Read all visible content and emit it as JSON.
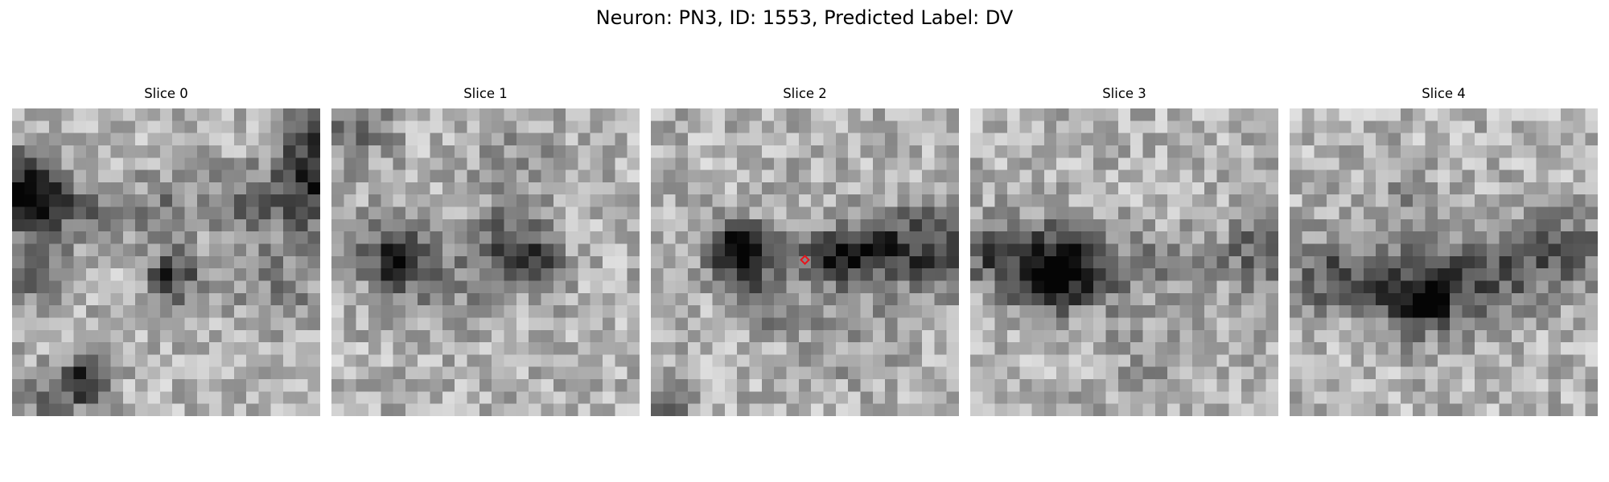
{
  "figure": {
    "title": "Neuron: PN3, ID: 1553, Predicted Label: DV"
  },
  "grid_size": 25,
  "marker_color": "#e8141b",
  "panels": [
    {
      "title": "Slice 0",
      "blobs": [
        {
          "row": 6.2,
          "col": 0.0,
          "radius": 2.2,
          "depth": 0.55
        },
        {
          "row": 7.3,
          "col": 2.5,
          "radius": 1.3,
          "depth": 0.45
        },
        {
          "row": 8.0,
          "col": 6.0,
          "radius": 1.8,
          "depth": 0.25
        },
        {
          "row": 7.5,
          "col": 12.0,
          "radius": 2.0,
          "depth": 0.22
        },
        {
          "row": 7.5,
          "col": 18.0,
          "radius": 2.0,
          "depth": 0.25
        },
        {
          "row": 6.0,
          "col": 24.2,
          "radius": 2.5,
          "depth": 0.55
        },
        {
          "row": 1.5,
          "col": 23.5,
          "radius": 1.8,
          "depth": 0.35
        },
        {
          "row": 13.2,
          "col": 12.5,
          "radius": 1.4,
          "depth": 0.5
        },
        {
          "row": 12.5,
          "col": 1.0,
          "radius": 2.0,
          "depth": 0.3
        },
        {
          "row": 21.8,
          "col": 5.0,
          "radius": 1.3,
          "depth": 0.6
        },
        {
          "row": 23.0,
          "col": 1.5,
          "radius": 1.5,
          "depth": 0.25
        },
        {
          "row": 14.0,
          "col": 21.0,
          "radius": 2.5,
          "depth": 0.2
        }
      ]
    },
    {
      "title": "Slice 1",
      "blobs": [
        {
          "row": 1.0,
          "col": 1.0,
          "radius": 2.2,
          "depth": 0.3
        },
        {
          "row": 11.0,
          "col": 4.5,
          "radius": 2.2,
          "depth": 0.4
        },
        {
          "row": 12.2,
          "col": 5.2,
          "radius": 1.0,
          "depth": 0.45
        },
        {
          "row": 10.8,
          "col": 13.5,
          "radius": 2.0,
          "depth": 0.35
        },
        {
          "row": 12.0,
          "col": 16.5,
          "radius": 1.6,
          "depth": 0.3
        },
        {
          "row": 14.0,
          "col": 9.0,
          "radius": 3.0,
          "depth": 0.15
        },
        {
          "row": 4.0,
          "col": 14.0,
          "radius": 3.0,
          "depth": 0.12
        }
      ]
    },
    {
      "title": "Slice 2",
      "blobs": [
        {
          "row": 11.0,
          "col": 6.5,
          "radius": 1.8,
          "depth": 0.55
        },
        {
          "row": 11.5,
          "col": 6.5,
          "radius": 0.9,
          "depth": 0.25
        },
        {
          "row": 11.5,
          "col": 14.5,
          "radius": 1.5,
          "depth": 0.55
        },
        {
          "row": 11.0,
          "col": 18.0,
          "radius": 2.0,
          "depth": 0.4
        },
        {
          "row": 11.0,
          "col": 22.5,
          "radius": 2.5,
          "depth": 0.4
        },
        {
          "row": 11.0,
          "col": 10.5,
          "radius": 1.5,
          "depth": 0.25
        },
        {
          "row": 15.0,
          "col": 8.5,
          "radius": 1.5,
          "depth": 0.3
        },
        {
          "row": 17.0,
          "col": 15.0,
          "radius": 3.0,
          "depth": 0.12
        },
        {
          "row": 23.5,
          "col": 0.5,
          "radius": 1.5,
          "depth": 0.3
        }
      ],
      "marker": {
        "row": 12.3,
        "col": 12.5
      }
    },
    {
      "title": "Slice 3",
      "blobs": [
        {
          "row": 12.5,
          "col": 5.5,
          "radius": 2.5,
          "depth": 0.55
        },
        {
          "row": 13.5,
          "col": 6.0,
          "radius": 1.2,
          "depth": 0.45
        },
        {
          "row": 12.5,
          "col": 9.5,
          "radius": 2.0,
          "depth": 0.35
        },
        {
          "row": 11.0,
          "col": 1.0,
          "radius": 1.8,
          "depth": 0.35
        },
        {
          "row": 12.0,
          "col": 15.0,
          "radius": 1.8,
          "depth": 0.2
        },
        {
          "row": 11.5,
          "col": 22.5,
          "radius": 2.2,
          "depth": 0.3
        },
        {
          "row": 20.0,
          "col": 14.0,
          "radius": 3.0,
          "depth": 0.1
        }
      ]
    },
    {
      "title": "Slice 4",
      "blobs": [
        {
          "row": 13.0,
          "col": 2.5,
          "radius": 2.2,
          "depth": 0.35
        },
        {
          "row": 13.5,
          "col": 7.0,
          "radius": 2.0,
          "depth": 0.3
        },
        {
          "row": 15.0,
          "col": 10.5,
          "radius": 2.2,
          "depth": 0.45
        },
        {
          "row": 15.5,
          "col": 10.8,
          "radius": 1.0,
          "depth": 0.45
        },
        {
          "row": 13.0,
          "col": 15.0,
          "radius": 2.2,
          "depth": 0.4
        },
        {
          "row": 12.0,
          "col": 20.0,
          "radius": 2.2,
          "depth": 0.3
        },
        {
          "row": 10.5,
          "col": 23.0,
          "radius": 2.0,
          "depth": 0.2
        },
        {
          "row": 7.5,
          "col": 9.0,
          "radius": 2.0,
          "depth": 0.15
        }
      ]
    }
  ]
}
